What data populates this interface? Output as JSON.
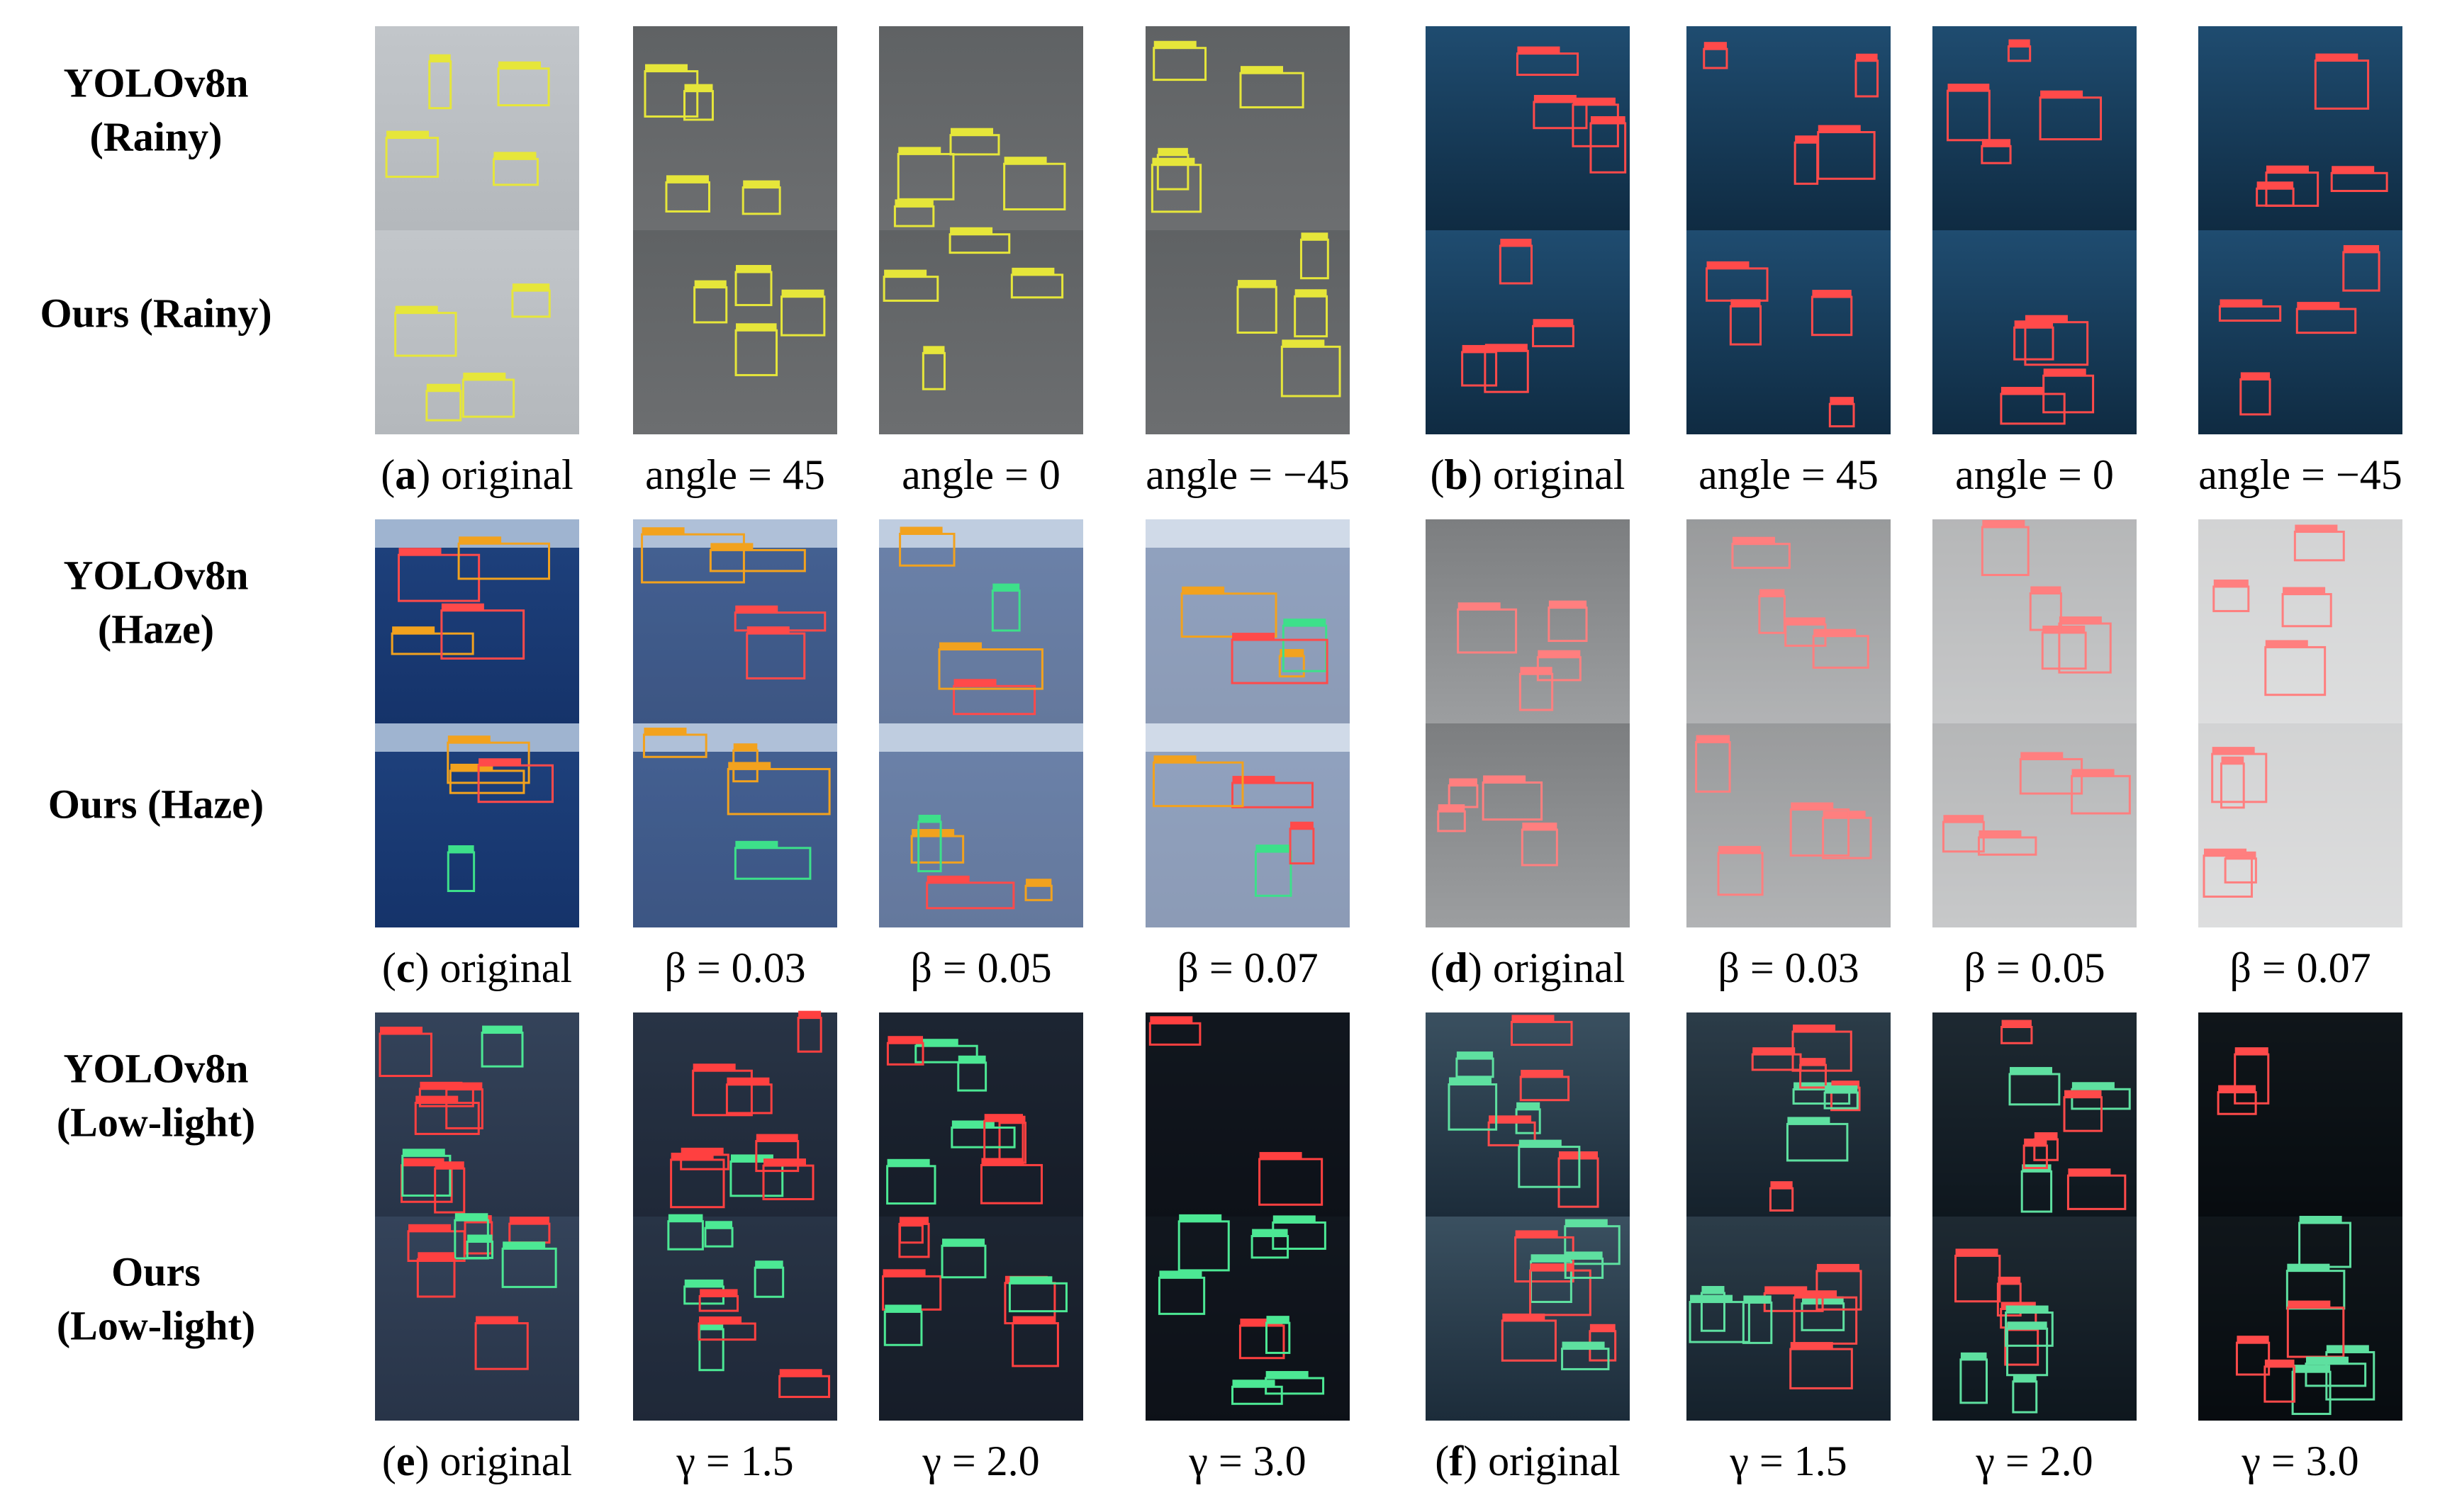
{
  "groups": [
    {
      "row_labels": [
        [
          "YOLOv8n",
          "(Rainy)"
        ],
        [
          "Ours (Rainy)"
        ]
      ],
      "panels": [
        {
          "original": {
            "open": "(",
            "letter": "a",
            "close": ") original"
          },
          "variants": [
            "angle = 45",
            "angle = 0",
            "angle = −45"
          ]
        },
        {
          "original": {
            "open": "(",
            "letter": "b",
            "close": ") original"
          },
          "variants": [
            "angle = 45",
            "angle = 0",
            "angle = −45"
          ]
        }
      ]
    },
    {
      "row_labels": [
        [
          "YOLOv8n",
          "(Haze)"
        ],
        [
          "Ours (Haze)"
        ]
      ],
      "panels": [
        {
          "original": {
            "open": "(",
            "letter": "c",
            "close": ") original"
          },
          "variants": [
            "β = 0.03",
            "β = 0.05",
            "β = 0.07"
          ]
        },
        {
          "original": {
            "open": "(",
            "letter": "d",
            "close": ") original"
          },
          "variants": [
            "β = 0.03",
            "β = 0.05",
            "β = 0.07"
          ]
        }
      ]
    },
    {
      "row_labels": [
        [
          "YOLOv8n",
          "(Low-light)"
        ],
        [
          "Ours",
          "(Low-light)"
        ]
      ],
      "panels": [
        {
          "original": {
            "open": "(",
            "letter": "e",
            "close": ") original"
          },
          "variants": [
            "γ = 1.5",
            "γ = 2.0",
            "γ = 3.0"
          ]
        },
        {
          "original": {
            "open": "(",
            "letter": "f",
            "close": ") original"
          },
          "variants": [
            "γ = 1.5",
            "γ = 2.0",
            "γ = 3.0"
          ]
        }
      ]
    }
  ]
}
